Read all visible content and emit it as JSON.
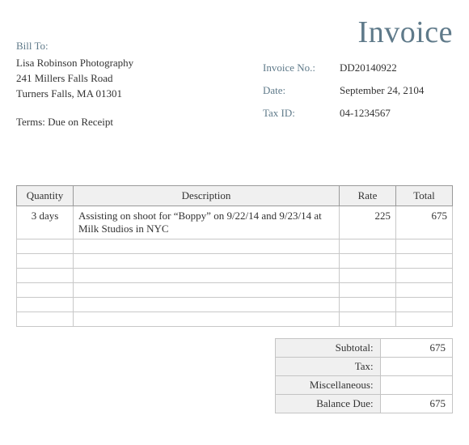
{
  "title": "Invoice",
  "billTo": {
    "label": "Bill To:",
    "name": "Lisa Robinson Photography",
    "street": "241 Millers Falls Road",
    "cityStateZip": "Turners Falls, MA  01301"
  },
  "termsLabel": "Terms:  Due on Receipt",
  "meta": {
    "invoiceNoLabel": "Invoice No.:",
    "invoiceNo": "DD20140922",
    "dateLabel": "Date:",
    "date": "September 24, 2104",
    "taxIdLabel": "Tax ID:",
    "taxId": "04-1234567"
  },
  "table": {
    "columns": [
      "Quantity",
      "Description",
      "Rate",
      "Total"
    ],
    "rows": [
      {
        "qty": "3 days",
        "desc": "Assisting on shoot for “Boppy” on 9/22/14 and 9/23/14 at Milk Studios in NYC",
        "rate": "225",
        "total": "675"
      },
      {
        "qty": "",
        "desc": "",
        "rate": "",
        "total": ""
      },
      {
        "qty": "",
        "desc": "",
        "rate": "",
        "total": ""
      },
      {
        "qty": "",
        "desc": "",
        "rate": "",
        "total": ""
      },
      {
        "qty": "",
        "desc": "",
        "rate": "",
        "total": ""
      },
      {
        "qty": "",
        "desc": "",
        "rate": "",
        "total": ""
      },
      {
        "qty": "",
        "desc": "",
        "rate": "",
        "total": ""
      }
    ]
  },
  "totals": {
    "subtotalLabel": "Subtotal:",
    "subtotal": "675",
    "taxLabel": "Tax:",
    "tax": "",
    "miscLabel": "Miscellaneous:",
    "misc": "",
    "balanceLabel": "Balance Due:",
    "balance": "675"
  },
  "style": {
    "accent_color": "#5f7a8a",
    "header_bg": "#f0f0f0",
    "border_color": "#c8c8c8",
    "text_color": "#333333",
    "background_color": "#ffffff",
    "title_fontsize": 38,
    "body_fontsize": 13,
    "font_family": "Times New Roman"
  }
}
